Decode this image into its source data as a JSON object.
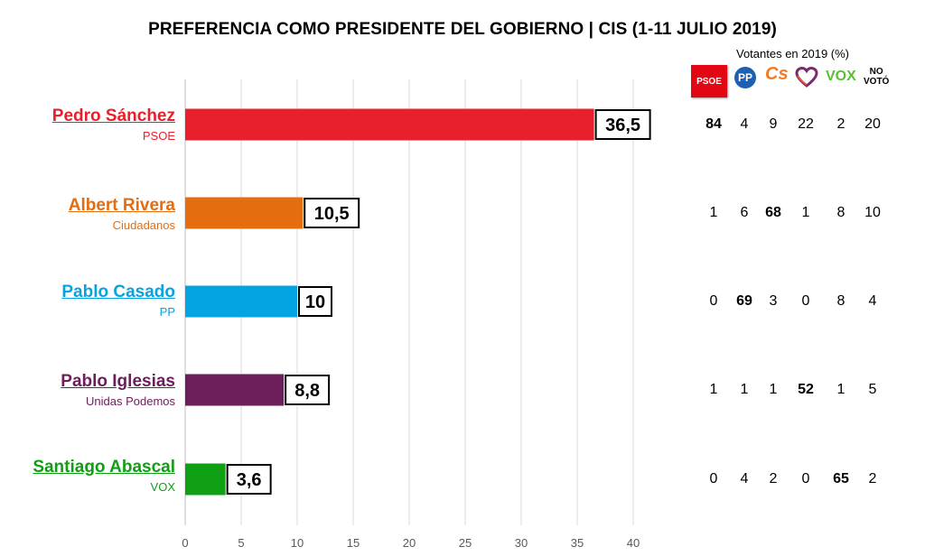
{
  "title": "PREFERENCIA COMO PRESIDENTE DEL GOBIERNO |   CIS (1-11 JULIO 2019)",
  "chart_data": {
    "type": "bar",
    "orientation": "horizontal",
    "categories": [
      "Pedro Sánchez",
      "Albert Rivera",
      "Pablo Casado",
      "Pablo Iglesias",
      "Santiago Abascal"
    ],
    "subcategories": [
      "PSOE",
      "Ciudadanos",
      "PP",
      "Unidas Podemos",
      "VOX"
    ],
    "values": [
      36.5,
      10.5,
      10,
      8.8,
      3.6
    ],
    "value_labels": [
      "36,5",
      "10,5",
      "10",
      "8,8",
      "3,6"
    ],
    "colors": [
      "#e8202b",
      "#e56d10",
      "#04a3e2",
      "#6b1e5a",
      "#0e9f12"
    ],
    "xlim": [
      0,
      40
    ],
    "xticks": [
      0,
      5,
      10,
      15,
      20,
      25,
      30,
      35,
      40
    ],
    "grid": true,
    "legend": "none"
  },
  "voters_table": {
    "header": "Votantes en 2019 (%)",
    "parties": [
      {
        "key": "psoe",
        "label": "PSOE",
        "color": "#e30613",
        "icon": "psoe-logo"
      },
      {
        "key": "pp",
        "label": "PP",
        "color": "#1d5fb0",
        "icon": "pp-logo"
      },
      {
        "key": "cs",
        "label": "Cs",
        "color": "#f47a20",
        "icon": "cs-logo"
      },
      {
        "key": "up",
        "label": "",
        "color": "#6b1e5a",
        "icon": "heart-icon"
      },
      {
        "key": "vox",
        "label": "VOX",
        "color": "#5ac035",
        "icon": "vox-logo"
      },
      {
        "key": "novoto",
        "label": "NO VOTÓ",
        "color": "#000000",
        "icon": "no-voto-label"
      }
    ],
    "no_voto_lines": [
      "NO",
      "VOTÓ"
    ],
    "rows": [
      {
        "values": [
          "84",
          "4",
          "9",
          "22",
          "2",
          "20"
        ],
        "highlight": 0
      },
      {
        "values": [
          "1",
          "6",
          "68",
          "1",
          "8",
          "10"
        ],
        "highlight": 2
      },
      {
        "values": [
          "0",
          "69",
          "3",
          "0",
          "8",
          "4"
        ],
        "highlight": 1
      },
      {
        "values": [
          "1",
          "1",
          "1",
          "52",
          "1",
          "5"
        ],
        "highlight": 3
      },
      {
        "values": [
          "0",
          "4",
          "2",
          "0",
          "65",
          "2"
        ],
        "highlight": 4
      }
    ]
  }
}
